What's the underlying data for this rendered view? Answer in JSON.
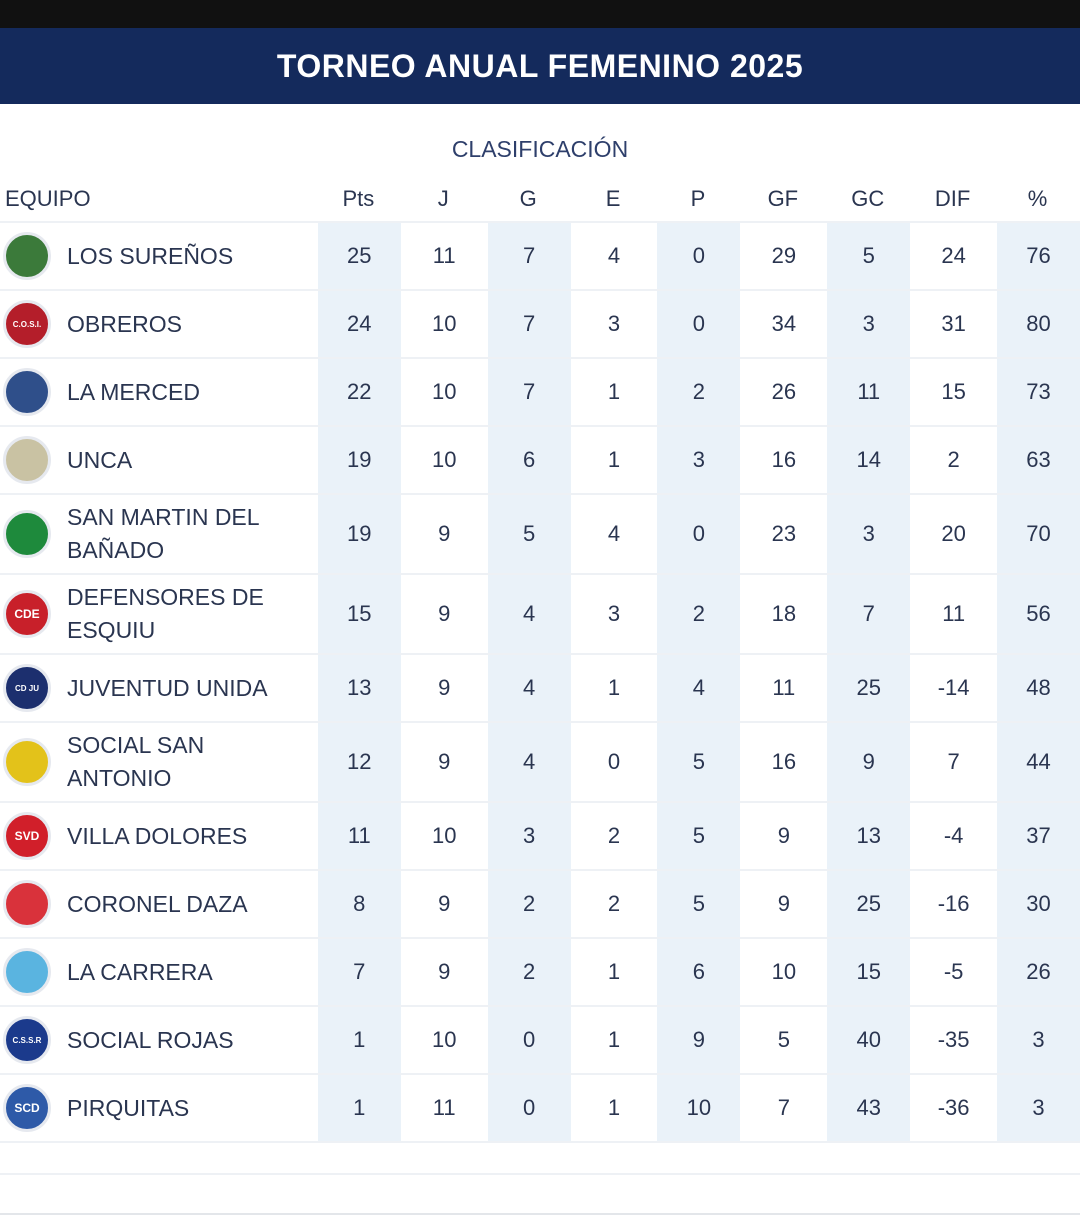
{
  "title": "TORNEO ANUAL FEMENINO 2025",
  "subtitle": "CLASIFICACIÓN",
  "columns": [
    "EQUIPO",
    "Pts",
    "J",
    "G",
    "E",
    "P",
    "GF",
    "GC",
    "DIF",
    "%"
  ],
  "colors": {
    "banner": "#142a5c",
    "cell_shade": "#eaf2f9",
    "text": "#2a3550"
  },
  "rows": [
    {
      "team": "LOS SUREÑOS",
      "logo": "los-surenos-crest-icon",
      "logo_color": "#3b7a3a",
      "logo_text": "",
      "pts": "25",
      "j": "11",
      "g": "7",
      "e": "4",
      "p": "0",
      "gf": "29",
      "gc": "5",
      "dif": "24",
      "pct": "76"
    },
    {
      "team": "OBREROS",
      "logo": "obreros-crest-icon",
      "logo_color": "#b41e2a",
      "logo_text": "C.O.S.I.",
      "pts": "24",
      "j": "10",
      "g": "7",
      "e": "3",
      "p": "0",
      "gf": "34",
      "gc": "3",
      "dif": "31",
      "pct": "80"
    },
    {
      "team": "LA MERCED",
      "logo": "la-merced-crest-icon",
      "logo_color": "#2f4f8a",
      "logo_text": "",
      "pts": "22",
      "j": "10",
      "g": "7",
      "e": "1",
      "p": "2",
      "gf": "26",
      "gc": "11",
      "dif": "15",
      "pct": "73"
    },
    {
      "team": "UNCA",
      "logo": "unca-crest-icon",
      "logo_color": "#c9c2a3",
      "logo_text": "",
      "pts": "19",
      "j": "10",
      "g": "6",
      "e": "1",
      "p": "3",
      "gf": "16",
      "gc": "14",
      "dif": "2",
      "pct": "63"
    },
    {
      "team": "SAN MARTIN DEL BAÑADO",
      "logo": "san-martin-crest-icon",
      "logo_color": "#1e8a3c",
      "logo_text": "",
      "pts": "19",
      "j": "9",
      "g": "5",
      "e": "4",
      "p": "0",
      "gf": "23",
      "gc": "3",
      "dif": "20",
      "pct": "70"
    },
    {
      "team": "DEFENSORES DE ESQUIU",
      "logo": "defensores-crest-icon",
      "logo_color": "#c8202a",
      "logo_text": "CDE",
      "pts": "15",
      "j": "9",
      "g": "4",
      "e": "3",
      "p": "2",
      "gf": "18",
      "gc": "7",
      "dif": "11",
      "pct": "56"
    },
    {
      "team": "JUVENTUD UNIDA",
      "logo": "juventud-unida-crest-icon",
      "logo_color": "#1c2f6e",
      "logo_text": "CD JU",
      "pts": "13",
      "j": "9",
      "g": "4",
      "e": "1",
      "p": "4",
      "gf": "11",
      "gc": "25",
      "dif": "-14",
      "pct": "48"
    },
    {
      "team": "SOCIAL SAN ANTONIO",
      "logo": "social-san-antonio-crest-icon",
      "logo_color": "#e3c21a",
      "logo_text": "",
      "pts": "12",
      "j": "9",
      "g": "4",
      "e": "0",
      "p": "5",
      "gf": "16",
      "gc": "9",
      "dif": "7",
      "pct": "44"
    },
    {
      "team": "VILLA DOLORES",
      "logo": "villa-dolores-crest-icon",
      "logo_color": "#d11f2a",
      "logo_text": "SVD",
      "pts": "11",
      "j": "10",
      "g": "3",
      "e": "2",
      "p": "5",
      "gf": "9",
      "gc": "13",
      "dif": "-4",
      "pct": "37"
    },
    {
      "team": "CORONEL DAZA",
      "logo": "coronel-daza-crest-icon",
      "logo_color": "#d9323b",
      "logo_text": "",
      "pts": "8",
      "j": "9",
      "g": "2",
      "e": "2",
      "p": "5",
      "gf": "9",
      "gc": "25",
      "dif": "-16",
      "pct": "30"
    },
    {
      "team": "LA CARRERA",
      "logo": "la-carrera-crest-icon",
      "logo_color": "#5ab4e0",
      "logo_text": "",
      "pts": "7",
      "j": "9",
      "g": "2",
      "e": "1",
      "p": "6",
      "gf": "10",
      "gc": "15",
      "dif": "-5",
      "pct": "26"
    },
    {
      "team": "SOCIAL ROJAS",
      "logo": "social-rojas-crest-icon",
      "logo_color": "#1b3a8c",
      "logo_text": "C.S.S.R",
      "pts": "1",
      "j": "10",
      "g": "0",
      "e": "1",
      "p": "9",
      "gf": "5",
      "gc": "40",
      "dif": "-35",
      "pct": "3"
    },
    {
      "team": "PIRQUITAS",
      "logo": "pirquitas-crest-icon",
      "logo_color": "#2e5aa8",
      "logo_text": "SCD",
      "pts": "1",
      "j": "11",
      "g": "0",
      "e": "1",
      "p": "10",
      "gf": "7",
      "gc": "43",
      "dif": "-36",
      "pct": "3"
    }
  ]
}
